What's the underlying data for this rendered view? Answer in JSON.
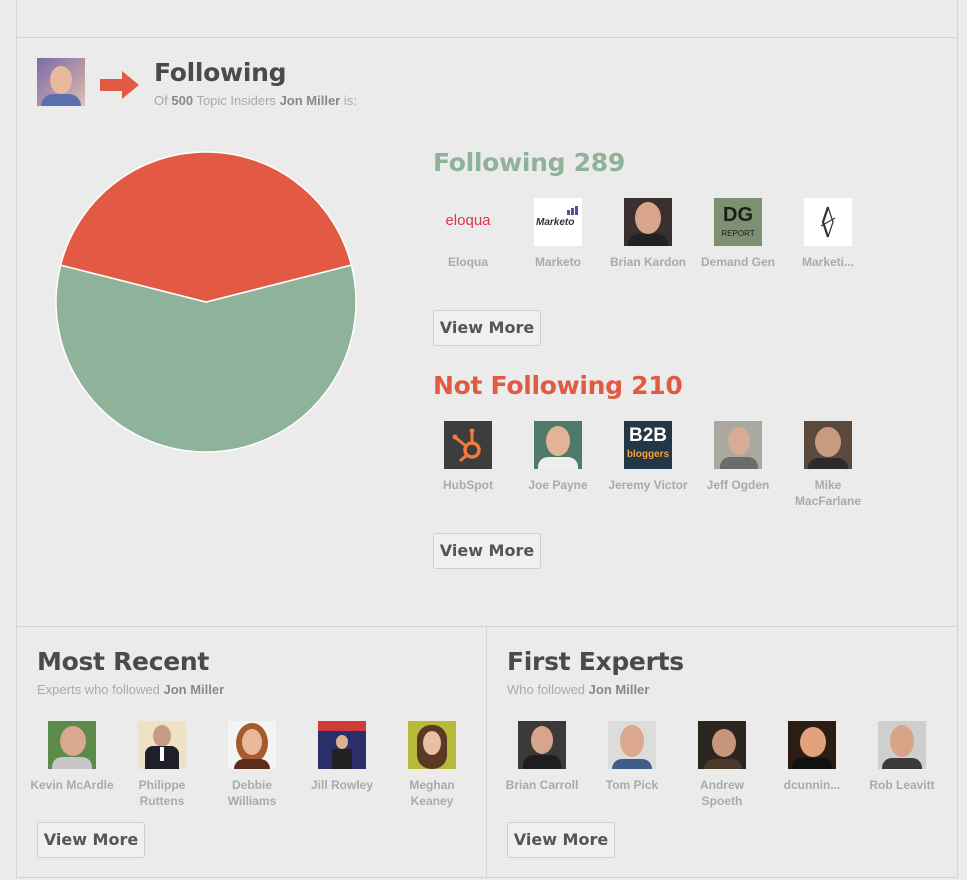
{
  "header": {
    "title": "Following",
    "subtitle_prefix": "Of",
    "subtitle_count": "500",
    "subtitle_mid": "Topic Insiders",
    "subtitle_name": "Jon Miller",
    "subtitle_suffix": "is:"
  },
  "colors": {
    "following": "#8fb39a",
    "not_following": "#e25a43"
  },
  "chart_data": {
    "type": "pie",
    "labels": [
      "Following",
      "Not Following"
    ],
    "values": [
      289,
      210
    ]
  },
  "following": {
    "label": "Following",
    "count": "289",
    "items": [
      {
        "name": "Eloqua"
      },
      {
        "name": "Marketo"
      },
      {
        "name": "Brian Kardon"
      },
      {
        "name": "Demand Gen"
      },
      {
        "name": "Marketi..."
      }
    ],
    "view_more": "View More"
  },
  "not_following": {
    "label": "Not Following",
    "count": "210",
    "items": [
      {
        "name": "HubSpot"
      },
      {
        "name": "Joe Payne"
      },
      {
        "name": "Jeremy Victor"
      },
      {
        "name": "Jeff Ogden"
      },
      {
        "name": "Mike MacFarlane"
      }
    ],
    "view_more": "View More"
  },
  "most_recent": {
    "title": "Most Recent",
    "subtitle_prefix": "Experts who followed",
    "subtitle_name": "Jon Miller",
    "items": [
      {
        "name": "Kevin McArdle"
      },
      {
        "name": "Philippe Ruttens"
      },
      {
        "name": "Debbie Williams"
      },
      {
        "name": "Jill Rowley"
      },
      {
        "name": "Meghan Keaney"
      }
    ],
    "view_more": "View More"
  },
  "first_experts": {
    "title": "First Experts",
    "subtitle_prefix": "Who followed",
    "subtitle_name": "Jon Miller",
    "items": [
      {
        "name": "Brian Carroll"
      },
      {
        "name": "Tom Pick"
      },
      {
        "name": "Andrew Spoeth"
      },
      {
        "name": "dcunnin..."
      },
      {
        "name": "Rob Leavitt"
      }
    ],
    "view_more": "View More"
  },
  "logos": {
    "eloqua_text": "eloqua",
    "marketo_text": "Marketo",
    "dg_text": "DG",
    "dg_sub": "REPORT",
    "b2b_text": "B2B",
    "b2b_sub": "bloggers"
  }
}
